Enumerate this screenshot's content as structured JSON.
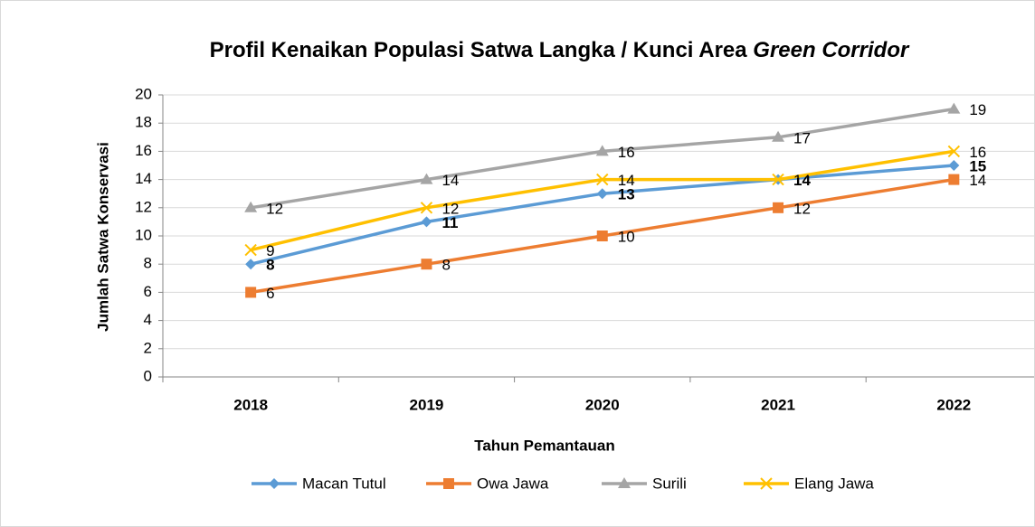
{
  "chart_data": {
    "type": "line",
    "title_parts": [
      "Profil Kenaikan Populasi Satwa Langka / Kunci Area ",
      "Green Corridor"
    ],
    "x_label": "Tahun Pemantauan",
    "y_label": "Jumlah Satwa Konservasi",
    "categories": [
      "2018",
      "2019",
      "2020",
      "2021",
      "2022"
    ],
    "series": [
      {
        "name": "Macan Tutul",
        "color": "#5b9bd5",
        "marker": "diamond",
        "bold_labels": true,
        "values": [
          8,
          11,
          13,
          14,
          15
        ]
      },
      {
        "name": "Owa Jawa",
        "color": "#ed7d31",
        "marker": "square",
        "bold_labels": false,
        "values": [
          6,
          8,
          10,
          12,
          14
        ]
      },
      {
        "name": "Surili",
        "color": "#a5a5a5",
        "marker": "triangle",
        "bold_labels": false,
        "values": [
          12,
          14,
          16,
          17,
          19
        ]
      },
      {
        "name": "Elang Jawa",
        "color": "#ffc000",
        "marker": "x",
        "bold_labels": false,
        "values": [
          9,
          12,
          14,
          14,
          16
        ]
      }
    ],
    "ylim": [
      0,
      20
    ],
    "yticks": [
      0,
      2,
      4,
      6,
      8,
      10,
      12,
      14,
      16,
      18,
      20
    ],
    "grid": true,
    "legend": "bottom"
  }
}
